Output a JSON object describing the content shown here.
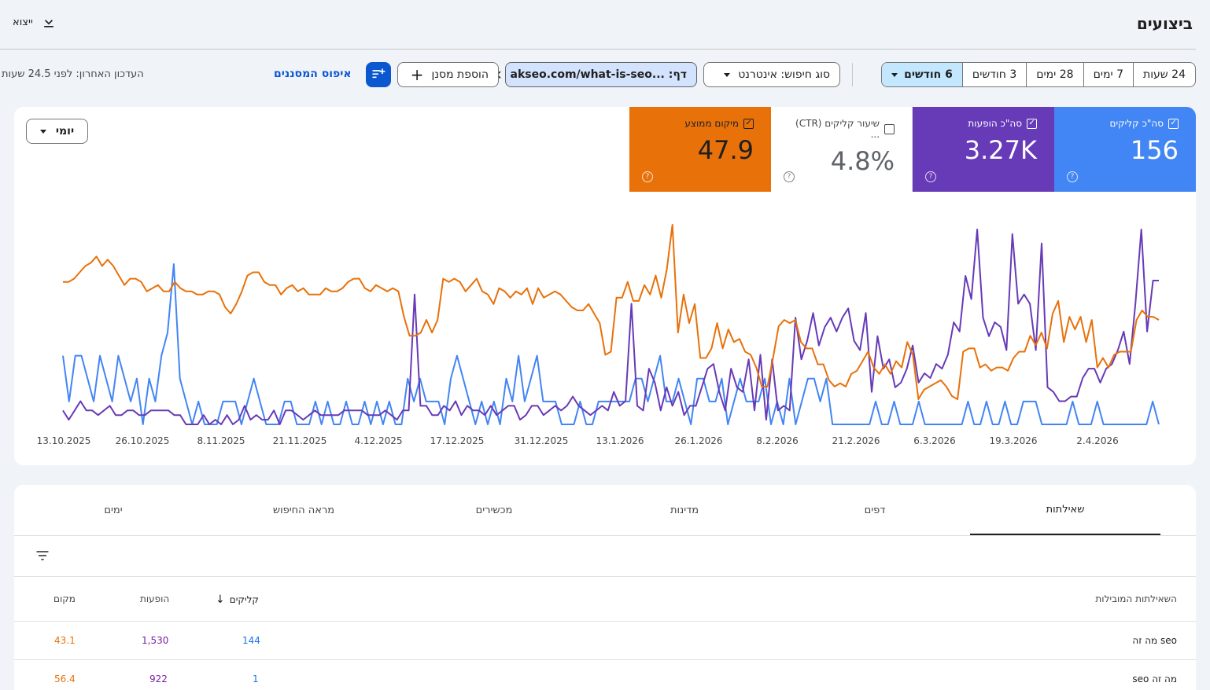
{
  "header": {
    "title": "ביצועים",
    "export_label": "ייצוא"
  },
  "date_range": {
    "options": [
      "24 שעות",
      "7 ימים",
      "28 ימים",
      "3 חודשים",
      "6 חודשים"
    ],
    "selected": "6 חודשים"
  },
  "filters": {
    "search_type": "סוג חיפוש: אינטרנט",
    "page": "דף: ...akseo.com/what-is-seo",
    "add_filter": "הוספת מסנן",
    "reset": "איפוס המסננים",
    "last_updated": "העדכון האחרון: לפני 24.5 שעות"
  },
  "chart_controls": {
    "granularity": "יומי"
  },
  "metrics": {
    "clicks": {
      "label": "סה\"כ קליקים",
      "value": "156",
      "checked": true,
      "color": "#4285f4"
    },
    "impressions": {
      "label": "סה\"כ הופעות",
      "value": "3.27K",
      "checked": true,
      "color": "#673ab7"
    },
    "ctr": {
      "label": "שיעור קליקים (CTR) ...",
      "value": "4.8%",
      "checked": false
    },
    "position": {
      "label": "מיקום ממוצע",
      "value": "47.9",
      "checked": true,
      "color": "#e8710a"
    }
  },
  "chart_data": {
    "type": "line",
    "x_tick_labels": [
      "13.10.2025",
      "26.10.2025",
      "8.11.2025",
      "21.11.2025",
      "4.12.2025",
      "17.12.2025",
      "31.12.2025",
      "13.1.2026",
      "26.1.2026",
      "8.2.2026",
      "21.2.2026",
      "6.3.2026",
      "19.3.2026",
      "2.4.2026"
    ],
    "series": [
      {
        "name": "סה\"כ קליקים",
        "color": "#4285f4",
        "values": [
          3,
          1,
          3,
          3,
          2,
          1,
          3,
          2,
          1,
          3,
          2,
          1,
          2,
          0,
          2,
          1,
          3,
          4,
          7,
          2,
          1,
          0,
          1,
          0,
          0,
          0,
          1,
          1,
          1,
          0,
          1,
          2,
          1,
          0,
          0,
          0,
          1,
          1,
          0,
          0,
          0,
          1,
          0,
          1,
          0,
          0,
          1,
          0,
          0,
          1,
          0,
          1,
          0,
          1,
          0,
          0,
          2,
          1,
          2,
          1,
          1,
          1,
          0,
          2,
          3,
          2,
          1,
          0,
          1,
          0,
          1,
          0,
          2,
          1,
          3,
          1,
          2,
          3,
          1,
          1,
          1,
          0,
          0,
          0,
          1,
          0,
          0,
          1,
          1,
          1,
          1,
          1,
          1,
          2,
          2,
          1,
          2,
          3,
          1,
          1,
          2,
          1,
          0,
          2,
          2,
          1,
          1,
          2,
          0,
          1,
          2,
          1,
          1,
          1,
          2,
          0,
          1,
          0,
          2,
          0,
          1,
          2,
          2,
          1,
          2,
          0,
          0,
          0,
          0,
          0,
          0,
          0,
          1,
          0,
          0,
          1,
          0,
          0,
          0,
          1,
          0,
          0,
          0,
          0,
          0,
          0,
          0,
          1,
          0,
          0,
          1,
          0,
          0,
          1,
          0,
          0,
          1,
          1,
          1,
          0,
          0,
          0,
          0,
          0,
          1,
          0,
          0,
          0,
          1,
          0,
          0,
          0,
          0,
          0,
          0,
          0,
          0,
          1,
          0
        ]
      },
      {
        "name": "סה\"כ הופעות",
        "color": "#673ab7",
        "values": [
          13,
          11,
          13,
          15,
          13,
          13,
          12,
          13,
          14,
          12,
          12,
          13,
          13,
          12,
          12,
          13,
          13,
          13,
          13,
          12,
          12,
          10,
          10,
          10,
          12,
          10,
          11,
          10,
          12,
          10,
          11,
          14,
          11,
          12,
          11,
          11,
          13,
          10,
          13,
          13,
          12,
          11,
          12,
          13,
          12,
          12,
          12,
          12,
          13,
          13,
          13,
          13,
          12,
          12,
          12,
          13,
          12,
          11,
          13,
          13,
          38,
          14,
          14,
          12,
          12,
          14,
          13,
          15,
          12,
          14,
          13,
          13,
          12,
          14,
          12,
          13,
          14,
          14,
          11,
          12,
          14,
          14,
          12,
          13,
          14,
          13,
          14,
          16,
          14,
          13,
          12,
          13,
          14,
          13,
          17,
          14,
          15,
          36,
          14,
          13,
          22,
          19,
          13,
          18,
          14,
          17,
          12,
          14,
          14,
          18,
          22,
          23,
          17,
          13,
          22,
          18,
          17,
          24,
          13,
          25,
          11,
          24,
          13,
          14,
          13,
          33,
          24,
          28,
          34,
          27,
          31,
          33,
          30,
          33,
          35,
          28,
          26,
          34,
          17,
          29,
          22,
          24,
          18,
          19,
          22,
          27,
          19,
          21,
          20,
          23,
          22,
          25,
          32,
          30,
          42,
          37,
          52,
          33,
          29,
          32,
          31,
          26,
          51,
          36,
          38,
          36,
          26,
          49,
          18,
          17,
          15,
          15,
          16,
          16,
          20,
          22,
          22,
          19,
          22,
          23,
          26,
          30,
          23,
          36,
          52,
          30,
          41,
          41
        ]
      },
      {
        "name": "מיקום ממוצע",
        "color": "#e8710a",
        "values": [
          43,
          43,
          44,
          46,
          48,
          49,
          51,
          48,
          50,
          48,
          45,
          42,
          44,
          44,
          43,
          40,
          41,
          42,
          40,
          40,
          43,
          41,
          40,
          40,
          39,
          39,
          40,
          40,
          39,
          35,
          33,
          36,
          40,
          45,
          46,
          46,
          43,
          42,
          42,
          39,
          41,
          42,
          40,
          41,
          39,
          39,
          39,
          41,
          40,
          40,
          41,
          43,
          44,
          44,
          41,
          40,
          42,
          41,
          40,
          41,
          40,
          32,
          26,
          26,
          27,
          31,
          27,
          31,
          44,
          43,
          44,
          43,
          40,
          42,
          44,
          40,
          39,
          36,
          41,
          40,
          38,
          40,
          39,
          41,
          36,
          41,
          38,
          39,
          40,
          39,
          37,
          35,
          34,
          34,
          36,
          33,
          30,
          20,
          21,
          38,
          38,
          43,
          37,
          37,
          42,
          39,
          45,
          38,
          47,
          61,
          27,
          39,
          30,
          36,
          19,
          19,
          22,
          30,
          22,
          28,
          24,
          25,
          21,
          20,
          16,
          10,
          10,
          19,
          29,
          31,
          30,
          31,
          24,
          22,
          22,
          17,
          17,
          12,
          10,
          11,
          10,
          14,
          15,
          18,
          21,
          16,
          14,
          17,
          14,
          18,
          16,
          24,
          20,
          6,
          9,
          10,
          11,
          12,
          10,
          7,
          6,
          21,
          22,
          22,
          16,
          17,
          15,
          16,
          16,
          15,
          19,
          21,
          21,
          26,
          23,
          27,
          22,
          33,
          37,
          24,
          32,
          28,
          32,
          24,
          31,
          16,
          19,
          16,
          20,
          21,
          21,
          21,
          31,
          34,
          32,
          32,
          31
        ]
      }
    ]
  },
  "tabs": [
    "שאילתות",
    "דפים",
    "מדינות",
    "מכשירים",
    "מראה החיפוש",
    "ימים"
  ],
  "active_tab": "שאילתות",
  "table": {
    "columns": {
      "query": "השאילתות המובילות",
      "clicks": "קליקים",
      "impressions": "הופעות",
      "position": "מקום"
    },
    "rows": [
      {
        "query": "מה זה seo",
        "clicks": "144",
        "impressions": "1,530",
        "position": "43.1"
      },
      {
        "query": "seo מה זה",
        "clicks": "1",
        "impressions": "922",
        "position": "56.4"
      }
    ]
  }
}
